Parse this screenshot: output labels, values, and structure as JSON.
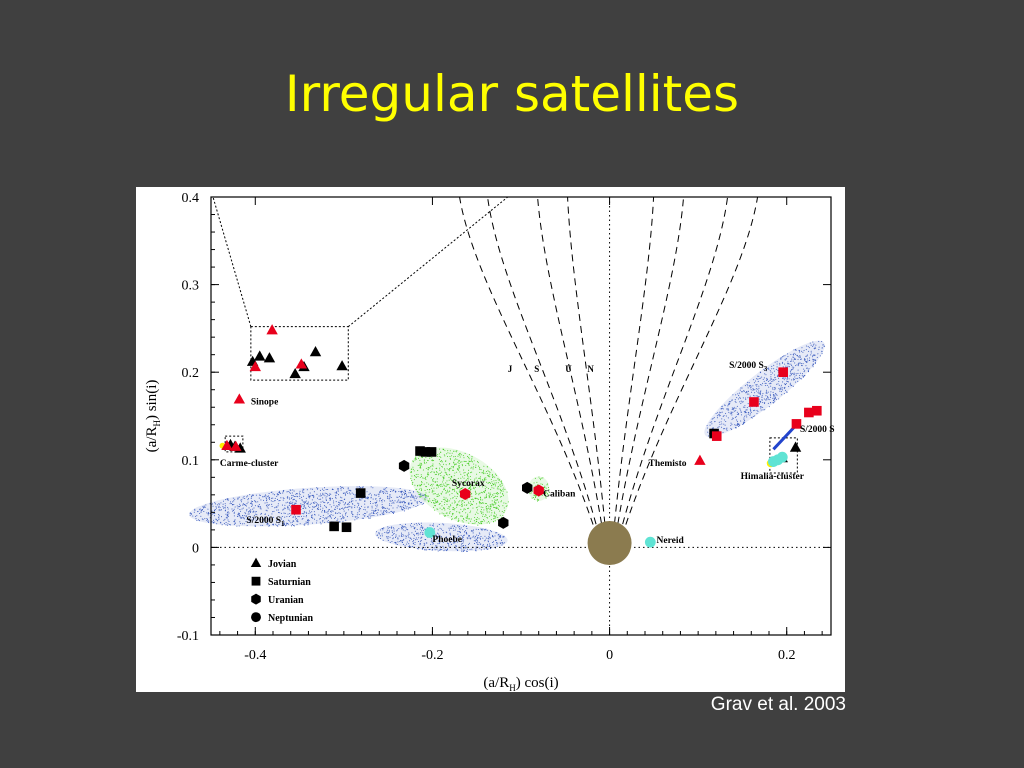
{
  "slide": {
    "title": "Irregular satellites",
    "credit": "Grav et al. 2003"
  },
  "colors": {
    "background": "#404040",
    "title": "#ffff00",
    "marker_black": "#000000",
    "marker_red": "#e8001c",
    "marker_cyan": "#5fe3d4",
    "cloud_blue": "#3355bb",
    "cloud_green": "#44cc22",
    "planet": "#8b7b4f"
  },
  "chart_data": {
    "type": "scatter",
    "xlabel": "(a/R_H) cos(i)",
    "ylabel": "(a/R_H) sin(i)",
    "xlim": [
      -0.45,
      0.25
    ],
    "ylim": [
      -0.1,
      0.4
    ],
    "x_ticks": [
      "-0.4",
      "-0.2",
      "0",
      "0.2"
    ],
    "y_ticks": [
      "-0.1",
      "0",
      "0.1",
      "0.2",
      "0.3",
      "0.4"
    ],
    "legend": {
      "placement": "bottom-left",
      "entries": [
        {
          "label": "Jovian",
          "marker": "triangle"
        },
        {
          "label": "Saturnian",
          "marker": "square"
        },
        {
          "label": "Uranian",
          "marker": "hexagon"
        },
        {
          "label": "Neptunian",
          "marker": "circle"
        }
      ]
    },
    "boundary_labels": [
      "J",
      "S",
      "U",
      "N"
    ],
    "annotations": [
      {
        "text": "Sinope",
        "x": -0.405,
        "y": 0.163
      },
      {
        "text": "Carme-cluster",
        "x": -0.44,
        "y": 0.093
      },
      {
        "text": "S/2000 S",
        "sub": "1",
        "x": -0.41,
        "y": 0.028
      },
      {
        "text": "Sycorax",
        "x": -0.178,
        "y": 0.07
      },
      {
        "text": "Caliban",
        "x": -0.075,
        "y": 0.058
      },
      {
        "text": "Phoebe",
        "x": -0.2,
        "y": 0.006
      },
      {
        "text": "Nereid",
        "x": 0.053,
        "y": 0.005
      },
      {
        "text": "Themisto",
        "x": 0.044,
        "y": 0.093
      },
      {
        "text": "Himalia-cluster",
        "x": 0.148,
        "y": 0.078
      },
      {
        "text": "S/2000 S",
        "sub": "3",
        "x": 0.135,
        "y": 0.205
      },
      {
        "text": "S/2000 S",
        "x": 0.215,
        "y": 0.132
      }
    ],
    "series": [
      {
        "marker": "triangle",
        "color": "black",
        "points": [
          [
            -0.403,
            0.212
          ],
          [
            -0.395,
            0.218
          ],
          [
            -0.384,
            0.216
          ],
          [
            -0.355,
            0.198
          ],
          [
            -0.345,
            0.206
          ],
          [
            -0.332,
            0.223
          ],
          [
            -0.302,
            0.207
          ],
          [
            -0.428,
            0.117
          ],
          [
            -0.423,
            0.115
          ],
          [
            -0.417,
            0.113
          ],
          [
            0.21,
            0.114
          ],
          [
            0.195,
            0.102
          ]
        ]
      },
      {
        "marker": "triangle",
        "color": "red",
        "points": [
          [
            -0.381,
            0.248
          ],
          [
            -0.4,
            0.206
          ],
          [
            -0.348,
            0.209
          ],
          [
            -0.418,
            0.169
          ],
          [
            -0.432,
            0.116
          ],
          [
            -0.422,
            0.115
          ],
          [
            0.102,
            0.099
          ]
        ]
      },
      {
        "marker": "square",
        "color": "black",
        "points": [
          [
            -0.214,
            0.11
          ],
          [
            -0.208,
            0.109
          ],
          [
            -0.201,
            0.109
          ],
          [
            -0.281,
            0.062
          ],
          [
            -0.311,
            0.024
          ],
          [
            -0.297,
            0.023
          ],
          [
            0.118,
            0.13
          ]
        ]
      },
      {
        "marker": "square",
        "color": "red",
        "points": [
          [
            -0.354,
            0.043
          ],
          [
            0.121,
            0.127
          ],
          [
            0.163,
            0.166
          ],
          [
            0.196,
            0.2
          ],
          [
            0.211,
            0.141
          ],
          [
            0.225,
            0.154
          ],
          [
            0.234,
            0.156
          ]
        ]
      },
      {
        "marker": "hexagon",
        "color": "black",
        "points": [
          [
            -0.232,
            0.093
          ],
          [
            -0.093,
            0.068
          ],
          [
            -0.12,
            0.028
          ]
        ]
      },
      {
        "marker": "hexagon",
        "color": "red",
        "points": [
          [
            -0.163,
            0.061
          ],
          [
            -0.08,
            0.065
          ]
        ]
      },
      {
        "marker": "circle",
        "color": "cyan",
        "points": [
          [
            -0.203,
            0.017
          ],
          [
            0.046,
            0.006
          ]
        ]
      },
      {
        "marker": "circle",
        "color": "cyan",
        "points": [
          [
            0.185,
            0.098
          ],
          [
            0.19,
            0.1
          ],
          [
            0.195,
            0.103
          ]
        ]
      }
    ],
    "clouds": [
      {
        "color": "blue",
        "cx": -0.34,
        "cy": 0.047,
        "rx": 0.135,
        "ry": 0.021,
        "angle": 4
      },
      {
        "color": "blue",
        "cx": -0.19,
        "cy": 0.012,
        "rx": 0.075,
        "ry": 0.016,
        "angle": -3
      },
      {
        "color": "green",
        "cx": -0.17,
        "cy": 0.07,
        "rx": 0.06,
        "ry": 0.038,
        "angle": -28
      },
      {
        "color": "green",
        "cx": -0.08,
        "cy": 0.067,
        "rx": 0.012,
        "ry": 0.014,
        "angle": 0
      },
      {
        "color": "blue",
        "cx": 0.175,
        "cy": 0.181,
        "rx": 0.085,
        "ry": 0.019,
        "angle": 38
      }
    ],
    "zoom_boxes": [
      {
        "x0": -0.405,
        "x1": -0.295,
        "y0": 0.191,
        "y1": 0.252
      },
      {
        "x0": -0.434,
        "x1": -0.414,
        "y0": 0.109,
        "y1": 0.127
      },
      {
        "x0": 0.181,
        "x1": 0.212,
        "y0": 0.085,
        "y1": 0.125
      }
    ],
    "planet": {
      "x": 0.0,
      "y": 0.005
    }
  }
}
